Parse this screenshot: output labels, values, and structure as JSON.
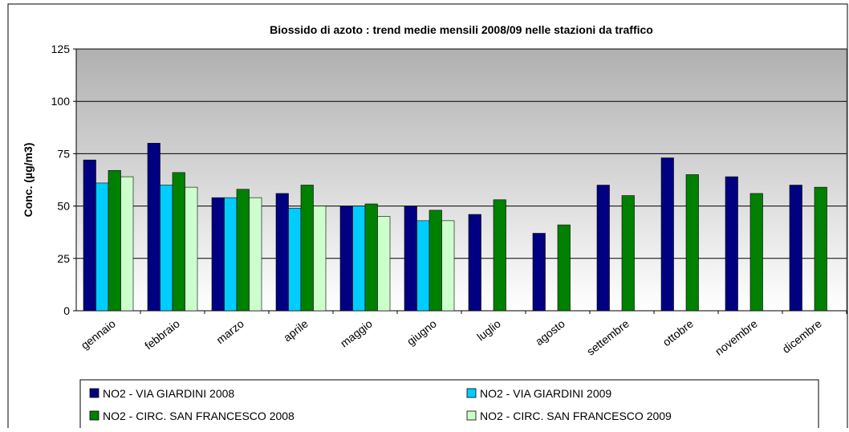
{
  "chart_data": {
    "type": "bar",
    "title": "Biossido di azoto : trend medie mensili 2008/09 nelle stazioni da traffico",
    "y_label": "Conc. (µg/m3)",
    "categories": [
      "gennaio",
      "febbraio",
      "marzo",
      "aprile",
      "maggio",
      "giugno",
      "luglio",
      "agosto",
      "settembre",
      "ottobre",
      "novembre",
      "dicembre"
    ],
    "series": [
      {
        "name": "NO2 - VIA GIARDINI 2008",
        "color": "#000080",
        "values": [
          72,
          80,
          54,
          56,
          50,
          50,
          46,
          37,
          60,
          73,
          64,
          60
        ]
      },
      {
        "name": "NO2 - VIA GIARDINI 2009",
        "color": "#00ccff",
        "values": [
          61,
          60,
          54,
          49,
          50,
          43,
          null,
          null,
          null,
          null,
          null,
          null
        ]
      },
      {
        "name": "NO2 - CIRC. SAN FRANCESCO 2008",
        "color": "#008000",
        "values": [
          67,
          66,
          58,
          60,
          51,
          48,
          53,
          41,
          55,
          65,
          56,
          59
        ]
      },
      {
        "name": "NO2 - CIRC. SAN FRANCESCO 2009",
        "color": "#ccffcc",
        "values": [
          64,
          59,
          54,
          50,
          45,
          43,
          null,
          null,
          null,
          null,
          null,
          null
        ]
      }
    ],
    "ylim": [
      0,
      125
    ],
    "yticks": [
      0,
      25,
      50,
      75,
      100,
      125
    ],
    "grid": true
  }
}
